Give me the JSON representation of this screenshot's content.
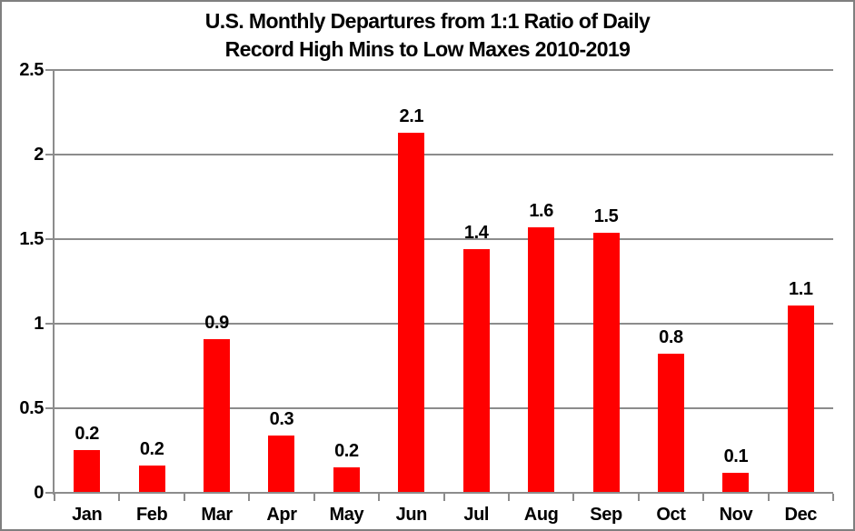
{
  "chart_data": {
    "type": "bar",
    "title": "U.S. Monthly Departures from 1:1 Ratio of Daily Record High Mins to Low Maxes 2010-2019",
    "title_lines": [
      "U.S. Monthly Departures from 1:1 Ratio of Daily",
      "Record High Mins to Low Maxes 2010-2019"
    ],
    "categories": [
      "Jan",
      "Feb",
      "Mar",
      "Apr",
      "May",
      "Jun",
      "Jul",
      "Aug",
      "Sep",
      "Oct",
      "Nov",
      "Dec"
    ],
    "values": [
      0.25,
      0.16,
      0.91,
      0.34,
      0.15,
      2.13,
      1.44,
      1.57,
      1.54,
      0.82,
      0.12,
      1.11
    ],
    "bar_labels": [
      "0.2",
      "0.2",
      "0.9",
      "0.3",
      "0.2",
      "2.1",
      "1.4",
      "1.6",
      "1.5",
      "0.8",
      "0.1",
      "1.1"
    ],
    "xlabel": "",
    "ylabel": "",
    "ylim": [
      0,
      2.5
    ],
    "yticks": [
      {
        "value": 0,
        "label": "0"
      },
      {
        "value": 0.5,
        "label": "0.5"
      },
      {
        "value": 1,
        "label": "1"
      },
      {
        "value": 1.5,
        "label": "1.5"
      },
      {
        "value": 2,
        "label": "2"
      },
      {
        "value": 2.5,
        "label": "2.5"
      }
    ],
    "grid": true,
    "legend": "none",
    "colors": {
      "bar": "#ff0000",
      "axis": "#8c8c8c",
      "gridline": "#8c8c8c",
      "border": "#7f7f7f",
      "text": "#000000",
      "background": "#ffffff"
    }
  }
}
